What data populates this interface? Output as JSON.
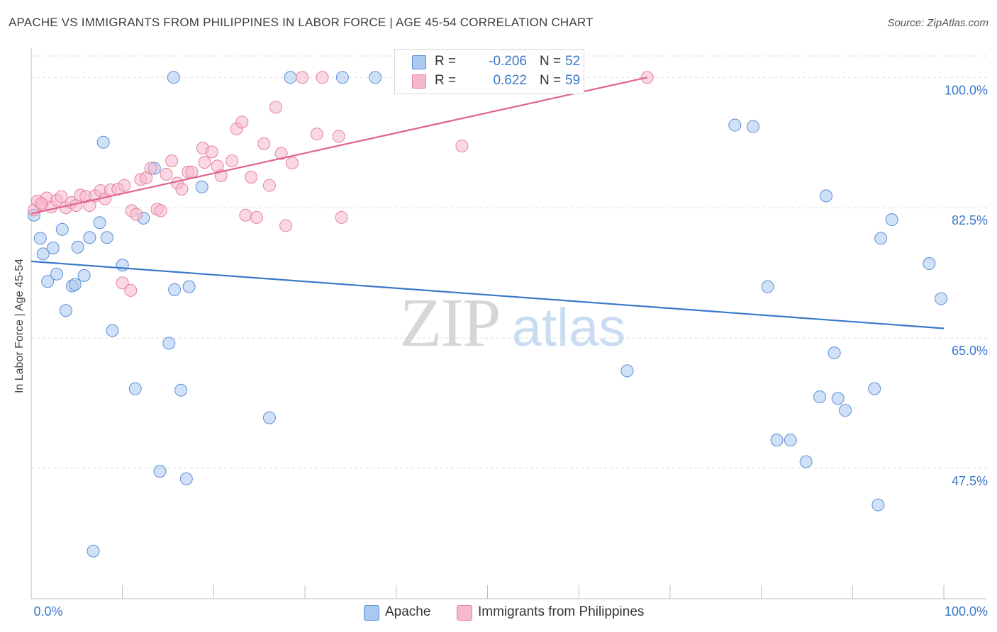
{
  "title": "APACHE VS IMMIGRANTS FROM PHILIPPINES IN LABOR FORCE | AGE 45-54 CORRELATION CHART",
  "source": "Source: ZipAtlas.com",
  "watermark": {
    "zip": "ZIP",
    "atlas": "atlas"
  },
  "legend": {
    "rows": [
      {
        "r_label": "R =",
        "r_value": "-0.206",
        "n_label": "N =",
        "n_value": "52",
        "color": "#aac8f0"
      },
      {
        "r_label": "R =",
        "r_value": "0.622",
        "n_label": "N =",
        "n_value": "59",
        "color": "#f6b8cc"
      }
    ]
  },
  "bottom_legend": [
    {
      "label": "Apache",
      "color": "#aac8f0"
    },
    {
      "label": "Immigrants from Philippines",
      "color": "#f6b8cc"
    }
  ],
  "chart_data": {
    "type": "scatter",
    "xlabel": "",
    "ylabel": "In Labor Force | Age 45-54",
    "xlim": [
      0,
      100
    ],
    "ylim": [
      30,
      104.5
    ],
    "x_tick_labels": [
      "0.0%",
      "100.0%"
    ],
    "y_ticks": [
      47.5,
      65.0,
      82.5,
      100.0
    ],
    "y_tick_labels": [
      "47.5%",
      "65.0%",
      "82.5%",
      "100.0%"
    ],
    "grid": true,
    "legend_position": "top-center",
    "series": [
      {
        "name": "Apache",
        "color": "#aac8f0",
        "stroke": "#5a8fd6",
        "trendline": {
          "x": [
            0,
            100
          ],
          "y": [
            75.3,
            66.3
          ],
          "color": "#3a78c9"
        },
        "points": [
          [
            0.3,
            81.5
          ],
          [
            1.0,
            78.4
          ],
          [
            1.3,
            76.3
          ],
          [
            1.8,
            72.6
          ],
          [
            2.4,
            77.1
          ],
          [
            2.8,
            73.6
          ],
          [
            3.4,
            79.6
          ],
          [
            3.8,
            68.7
          ],
          [
            4.5,
            72.0
          ],
          [
            4.8,
            72.2
          ],
          [
            5.1,
            77.2
          ],
          [
            5.8,
            73.4
          ],
          [
            6.4,
            78.5
          ],
          [
            7.5,
            80.5
          ],
          [
            7.9,
            91.3
          ],
          [
            8.3,
            78.5
          ],
          [
            8.9,
            66.0
          ],
          [
            10.0,
            74.8
          ],
          [
            11.4,
            58.2
          ],
          [
            12.3,
            81.1
          ],
          [
            13.5,
            87.8
          ],
          [
            14.1,
            47.1
          ],
          [
            15.1,
            64.3
          ],
          [
            15.6,
            100.0
          ],
          [
            15.7,
            71.5
          ],
          [
            16.4,
            58.0
          ],
          [
            17.0,
            46.1
          ],
          [
            17.3,
            71.9
          ],
          [
            18.7,
            85.3
          ],
          [
            26.1,
            54.3
          ],
          [
            28.4,
            100.0
          ],
          [
            34.1,
            100.0
          ],
          [
            37.7,
            100.0
          ],
          [
            65.3,
            60.6
          ],
          [
            77.1,
            93.6
          ],
          [
            79.1,
            93.4
          ],
          [
            80.7,
            71.9
          ],
          [
            81.7,
            51.3
          ],
          [
            83.2,
            51.3
          ],
          [
            84.9,
            48.4
          ],
          [
            86.4,
            57.1
          ],
          [
            87.1,
            84.1
          ],
          [
            88.0,
            63.0
          ],
          [
            88.4,
            56.9
          ],
          [
            89.2,
            55.3
          ],
          [
            92.4,
            58.2
          ],
          [
            92.8,
            42.6
          ],
          [
            93.1,
            78.4
          ],
          [
            94.3,
            80.9
          ],
          [
            98.4,
            75.0
          ],
          [
            99.7,
            70.3
          ],
          [
            6.8,
            36.4
          ]
        ]
      },
      {
        "name": "Immigrants from Philippines",
        "color": "#f6b8cc",
        "stroke": "#e7819f",
        "trendline": {
          "x": [
            0,
            67.5
          ],
          "y": [
            81.7,
            100.0
          ],
          "color": "#e0638d"
        },
        "points": [
          [
            0.3,
            82.2
          ],
          [
            0.7,
            83.4
          ],
          [
            1.2,
            82.9
          ],
          [
            1.7,
            83.8
          ],
          [
            2.2,
            82.6
          ],
          [
            2.8,
            83.5
          ],
          [
            3.3,
            84.0
          ],
          [
            3.8,
            82.5
          ],
          [
            4.4,
            83.2
          ],
          [
            4.9,
            82.8
          ],
          [
            5.4,
            84.2
          ],
          [
            6.0,
            84.0
          ],
          [
            6.4,
            82.8
          ],
          [
            7.0,
            84.1
          ],
          [
            7.6,
            84.8
          ],
          [
            8.1,
            83.7
          ],
          [
            8.7,
            84.9
          ],
          [
            9.5,
            85.0
          ],
          [
            10.2,
            85.5
          ],
          [
            11.0,
            82.1
          ],
          [
            11.5,
            81.6
          ],
          [
            12.0,
            86.3
          ],
          [
            12.6,
            86.5
          ],
          [
            13.1,
            87.8
          ],
          [
            13.8,
            82.3
          ],
          [
            14.2,
            82.1
          ],
          [
            14.8,
            87.0
          ],
          [
            15.4,
            88.8
          ],
          [
            16.0,
            85.8
          ],
          [
            16.5,
            85.0
          ],
          [
            17.2,
            87.3
          ],
          [
            17.6,
            87.3
          ],
          [
            18.8,
            90.5
          ],
          [
            19.0,
            88.6
          ],
          [
            19.8,
            90.0
          ],
          [
            20.4,
            88.1
          ],
          [
            20.8,
            86.8
          ],
          [
            22.0,
            88.8
          ],
          [
            22.5,
            93.1
          ],
          [
            23.1,
            94.0
          ],
          [
            23.5,
            81.5
          ],
          [
            24.1,
            86.6
          ],
          [
            24.7,
            81.2
          ],
          [
            25.5,
            91.1
          ],
          [
            26.1,
            85.5
          ],
          [
            26.8,
            96.0
          ],
          [
            27.4,
            89.8
          ],
          [
            27.9,
            80.1
          ],
          [
            28.6,
            88.5
          ],
          [
            29.7,
            100.0
          ],
          [
            31.3,
            92.4
          ],
          [
            31.9,
            100.0
          ],
          [
            33.7,
            92.1
          ],
          [
            34.0,
            81.2
          ],
          [
            47.2,
            90.8
          ],
          [
            67.5,
            100.0
          ],
          [
            10.0,
            72.4
          ],
          [
            10.9,
            71.4
          ],
          [
            1.1,
            83.1
          ]
        ]
      }
    ]
  }
}
